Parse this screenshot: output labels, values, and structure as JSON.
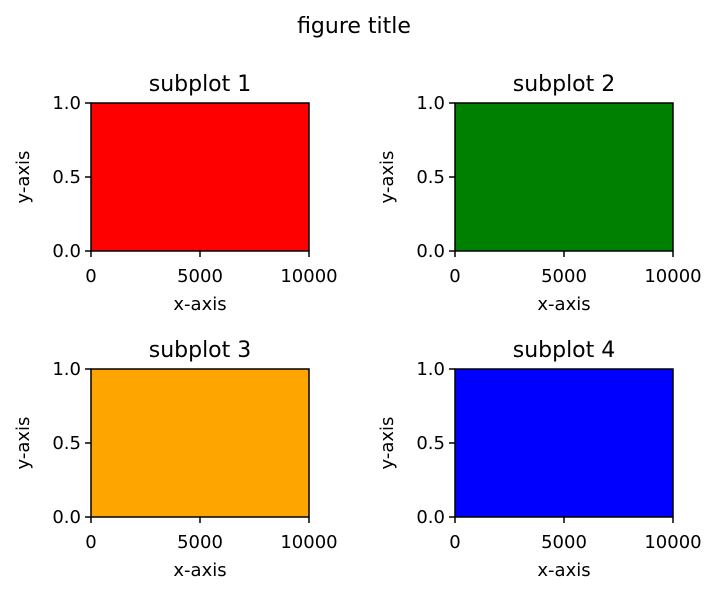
{
  "figure": {
    "title": "figure title"
  },
  "chart_data": [
    {
      "type": "area",
      "title": "subplot 1",
      "xlabel": "x-axis",
      "ylabel": "y-axis",
      "xlim": [
        0,
        10000
      ],
      "ylim": [
        0,
        1
      ],
      "xticks": [
        0,
        5000,
        10000
      ],
      "xtick_labels": [
        "0",
        "5000",
        "10000"
      ],
      "yticks": [
        0,
        0.5,
        1
      ],
      "ytick_labels": [
        "0.0",
        "0.5",
        "1.0"
      ],
      "grid": false,
      "color": "#ff0000",
      "series": [
        {
          "x_range": [
            0,
            10000
          ],
          "y_range": [
            0,
            1
          ]
        }
      ]
    },
    {
      "type": "area",
      "title": "subplot 2",
      "xlabel": "x-axis",
      "ylabel": "y-axis",
      "xlim": [
        0,
        10000
      ],
      "ylim": [
        0,
        1
      ],
      "xticks": [
        0,
        5000,
        10000
      ],
      "xtick_labels": [
        "0",
        "5000",
        "10000"
      ],
      "yticks": [
        0,
        0.5,
        1
      ],
      "ytick_labels": [
        "0.0",
        "0.5",
        "1.0"
      ],
      "grid": false,
      "color": "#008000",
      "series": [
        {
          "x_range": [
            0,
            10000
          ],
          "y_range": [
            0,
            1
          ]
        }
      ]
    },
    {
      "type": "area",
      "title": "subplot 3",
      "xlabel": "x-axis",
      "ylabel": "y-axis",
      "xlim": [
        0,
        10000
      ],
      "ylim": [
        0,
        1
      ],
      "xticks": [
        0,
        5000,
        10000
      ],
      "xtick_labels": [
        "0",
        "5000",
        "10000"
      ],
      "yticks": [
        0,
        0.5,
        1
      ],
      "ytick_labels": [
        "0.0",
        "0.5",
        "1.0"
      ],
      "grid": false,
      "color": "#ffa500",
      "series": [
        {
          "x_range": [
            0,
            10000
          ],
          "y_range": [
            0,
            1
          ]
        }
      ]
    },
    {
      "type": "area",
      "title": "subplot 4",
      "xlabel": "x-axis",
      "ylabel": "y-axis",
      "xlim": [
        0,
        10000
      ],
      "ylim": [
        0,
        1
      ],
      "xticks": [
        0,
        5000,
        10000
      ],
      "xtick_labels": [
        "0",
        "5000",
        "10000"
      ],
      "yticks": [
        0,
        0.5,
        1
      ],
      "ytick_labels": [
        "0.0",
        "0.5",
        "1.0"
      ],
      "grid": false,
      "color": "#0000ff",
      "series": [
        {
          "x_range": [
            0,
            10000
          ],
          "y_range": [
            0,
            1
          ]
        }
      ]
    }
  ]
}
